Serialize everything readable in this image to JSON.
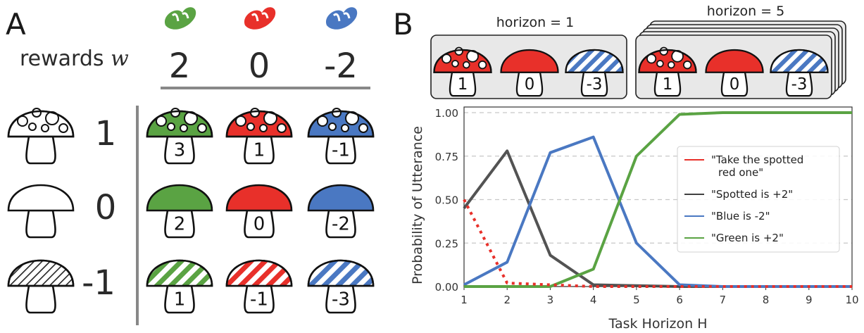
{
  "panel_a": {
    "letter": "A",
    "rewards_label": "rewards",
    "rewards_symbol": "w",
    "color_weights": [
      {
        "color": "#5aa343",
        "value": "2"
      },
      {
        "color": "#e8302a",
        "value": "0"
      },
      {
        "color": "#4a78c2",
        "value": "-2"
      }
    ],
    "pattern_rows": [
      {
        "pattern": "spotted",
        "value": "1",
        "cells": [
          "3",
          "1",
          "-1"
        ]
      },
      {
        "pattern": "solid",
        "value": "0",
        "cells": [
          "2",
          "0",
          "-2"
        ]
      },
      {
        "pattern": "striped",
        "value": "-1",
        "cells": [
          "1",
          "-1",
          "-3"
        ]
      }
    ]
  },
  "panel_b": {
    "letter": "B",
    "box1_title": "horizon = 1",
    "box2_title": "horizon = 5",
    "box_mushrooms": [
      {
        "pattern": "spotted",
        "color": "#e8302a",
        "value": "1"
      },
      {
        "pattern": "solid",
        "color": "#e8302a",
        "value": "0"
      },
      {
        "pattern": "striped",
        "color": "#4a78c2",
        "value": "-3"
      }
    ]
  },
  "chart_data": {
    "type": "line",
    "xlabel": "Task Horizon H",
    "ylabel": "Probability of Utterance",
    "x": [
      1,
      2,
      3,
      4,
      5,
      6,
      7,
      8,
      9,
      10
    ],
    "xlim": [
      1,
      10
    ],
    "ylim": [
      0,
      1.0
    ],
    "yticks": [
      "0.00",
      "0.25",
      "0.50",
      "0.75",
      "1.00"
    ],
    "xticks": [
      "1",
      "2",
      "3",
      "4",
      "5",
      "6",
      "7",
      "8",
      "9",
      "10"
    ],
    "grid": "horizontal dashed",
    "legend_position": "right",
    "series": [
      {
        "name": "\"Take the spotted red one\"",
        "color": "#e8302a",
        "style": "dotted",
        "values": [
          0.5,
          0.02,
          0.01,
          0.0,
          0.0,
          0.0,
          0.0,
          0.0,
          0.0,
          0.0
        ]
      },
      {
        "name": "\"Spotted is +2\"",
        "color": "#404040",
        "style": "solid",
        "values": [
          0.45,
          0.78,
          0.18,
          0.01,
          0.005,
          0.0,
          0.0,
          0.0,
          0.0,
          0.0
        ]
      },
      {
        "name": "\"Blue is -2\"",
        "color": "#4a78c2",
        "style": "solid",
        "values": [
          0.01,
          0.14,
          0.77,
          0.86,
          0.25,
          0.01,
          0.0,
          0.0,
          0.0,
          0.0
        ]
      },
      {
        "name": "\"Green is +2\"",
        "color": "#5aa343",
        "style": "solid",
        "values": [
          0.0,
          0.0,
          0.0,
          0.1,
          0.75,
          0.99,
          1.0,
          1.0,
          1.0,
          1.0
        ]
      }
    ],
    "legend_lines": [
      [
        "\"Take the spotted",
        "red one\""
      ],
      [
        "\"Spotted is +2\""
      ],
      [
        "\"Blue is -2\""
      ],
      [
        "\"Green is +2\""
      ]
    ]
  }
}
